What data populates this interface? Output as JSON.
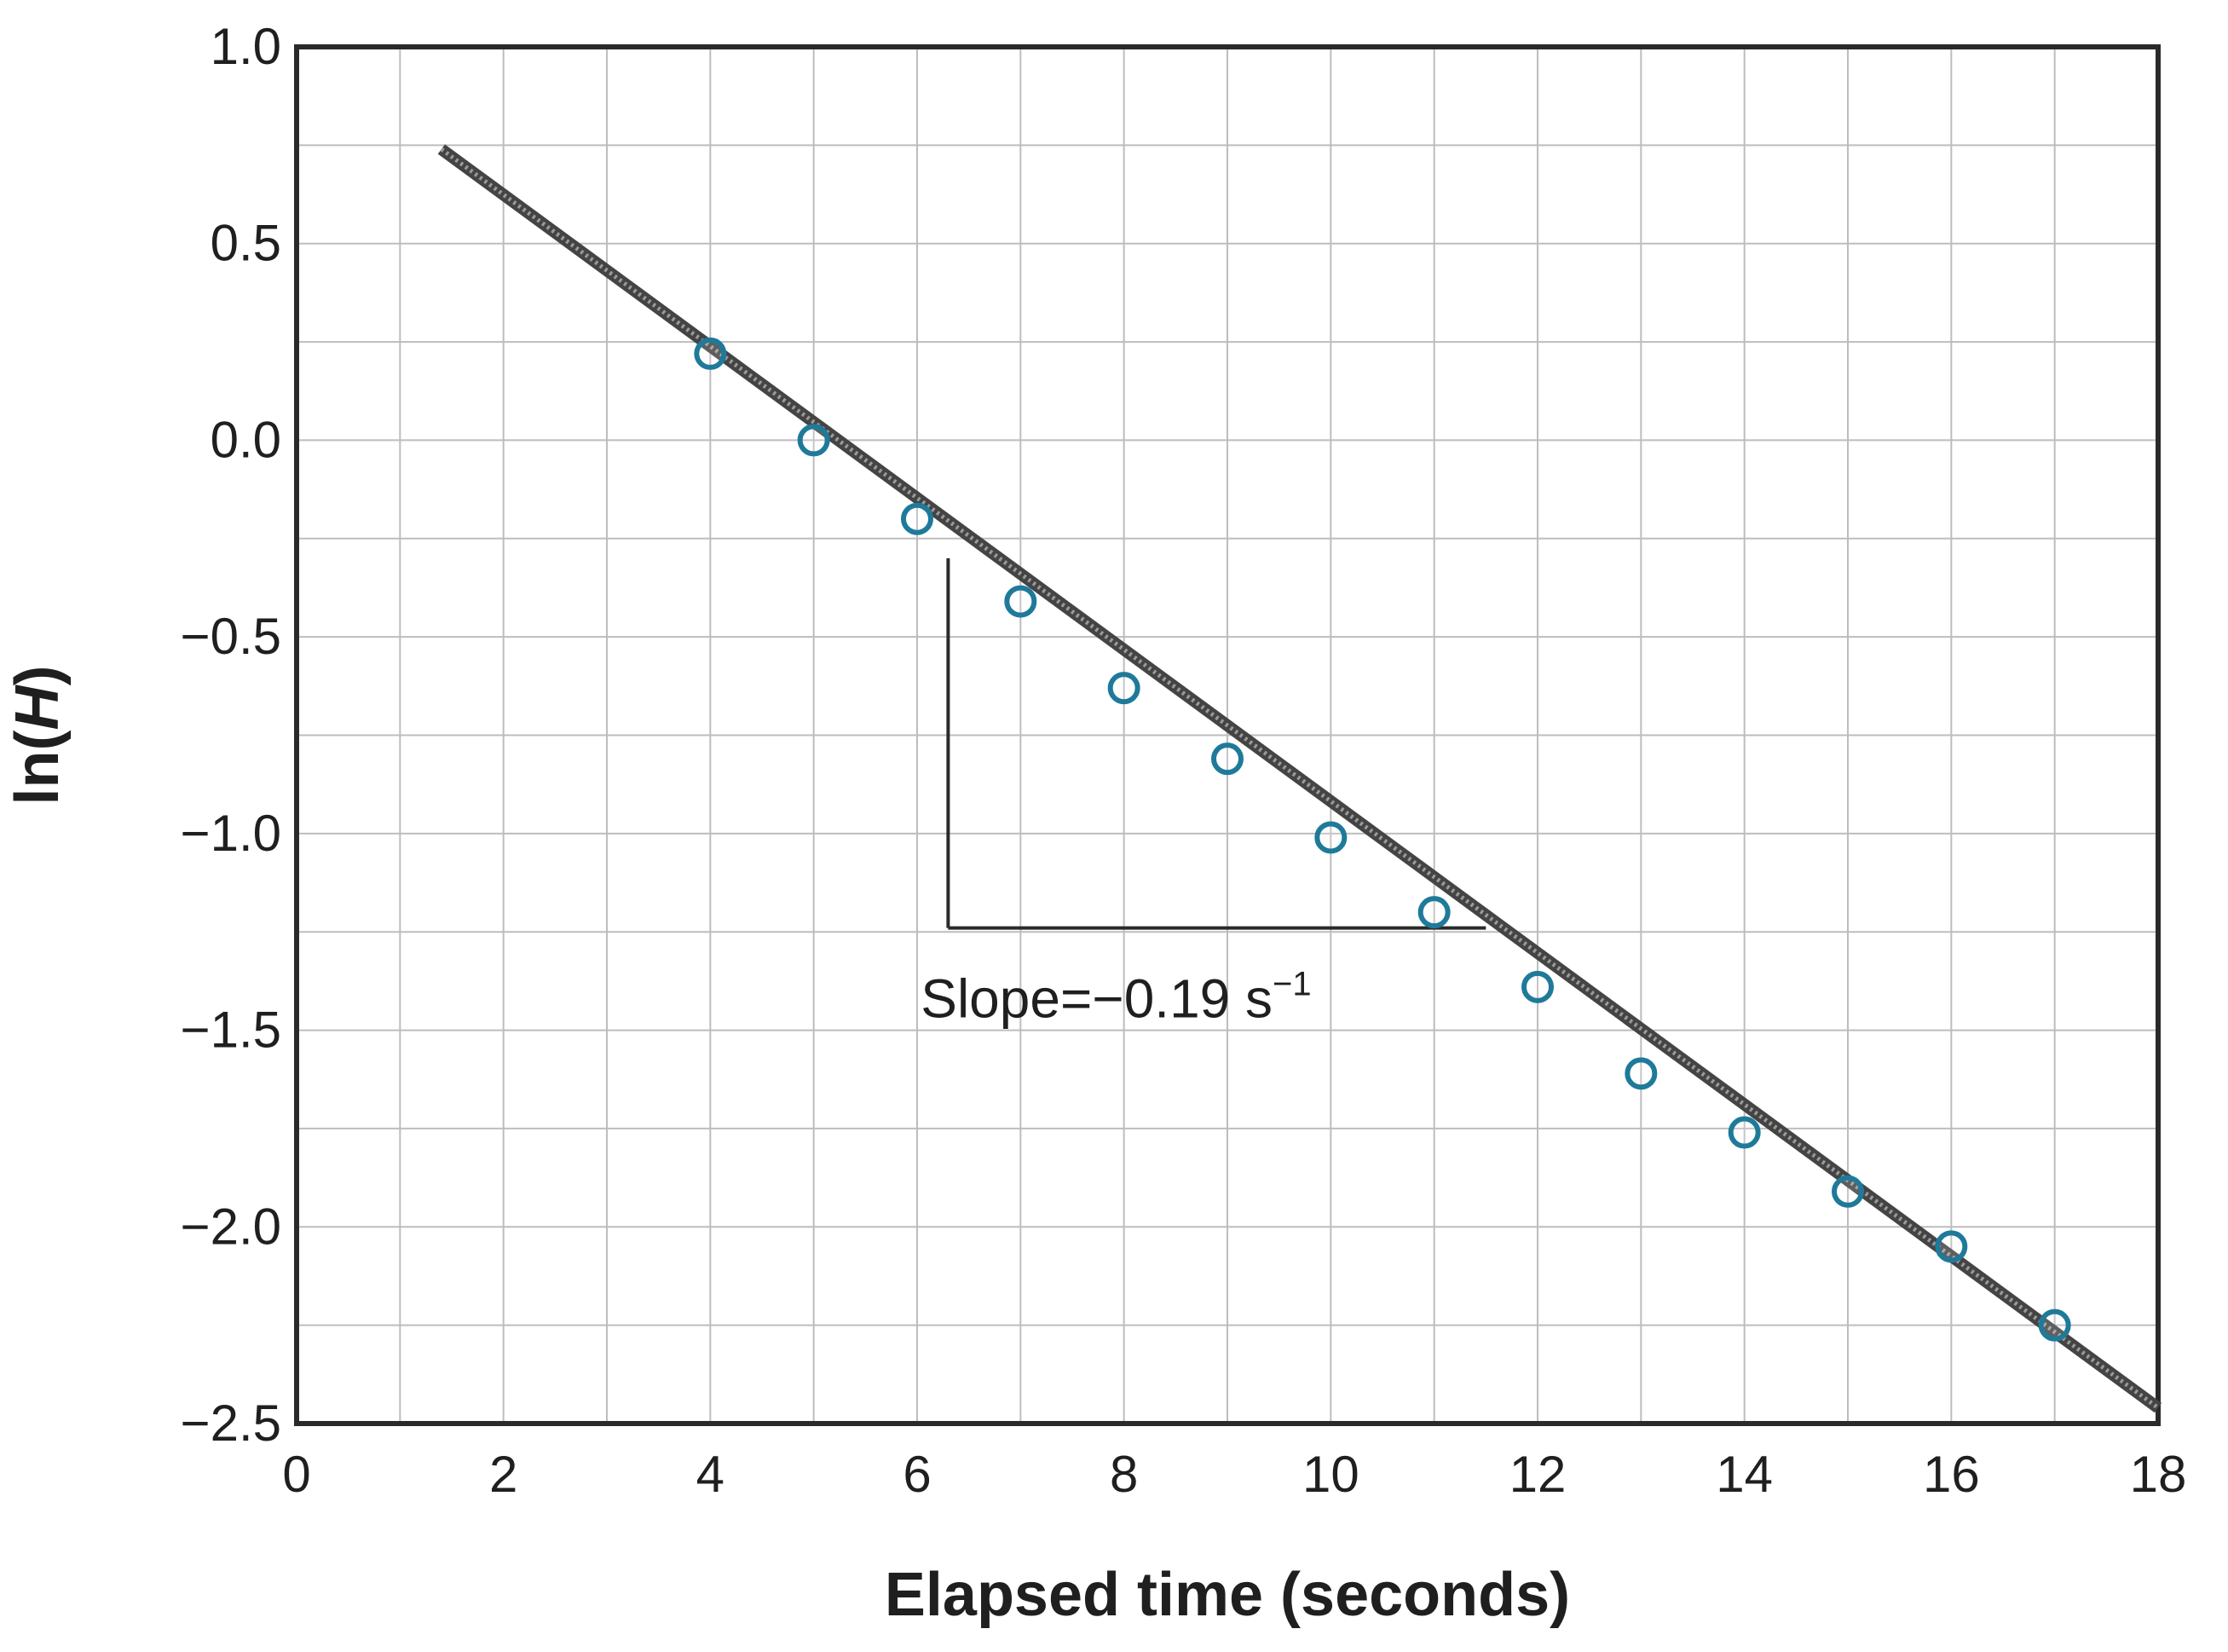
{
  "chart_data": {
    "type": "scatter",
    "title": "",
    "xlabel": "Elapsed time (seconds)",
    "ylabel_parts": {
      "prefix": "ln(",
      "var": "H",
      "suffix": ")"
    },
    "xlim": [
      0,
      18
    ],
    "ylim": [
      -2.5,
      1.0
    ],
    "x_ticks": [
      0,
      2,
      4,
      6,
      8,
      10,
      12,
      14,
      16,
      18
    ],
    "x_tick_labels": [
      "0",
      "2",
      "4",
      "6",
      "8",
      "10",
      "12",
      "14",
      "16",
      "18"
    ],
    "y_ticks": [
      1.0,
      0.5,
      0.0,
      -0.5,
      -1.0,
      -1.5,
      -2.0,
      -2.5
    ],
    "y_tick_labels": [
      "1.0",
      "0.5",
      "0.0",
      "−0.5",
      "−1.0",
      "−1.5",
      "−2.0",
      "−2.5"
    ],
    "grid": true,
    "series": [
      {
        "marker": "circle",
        "color": "#1f7a9a",
        "x": [
          4,
          5,
          6,
          7,
          8,
          9,
          10,
          11,
          12,
          13,
          14,
          15,
          16,
          17
        ],
        "y": [
          0.22,
          0.0,
          -0.2,
          -0.41,
          -0.63,
          -0.81,
          -1.01,
          -1.2,
          -1.39,
          -1.61,
          -1.76,
          -1.91,
          -2.05,
          -2.25
        ]
      }
    ],
    "fit_line": {
      "color": "#555555",
      "x": [
        1.4,
        18
      ],
      "y": [
        0.74,
        -2.46
      ]
    },
    "slope_triangle": {
      "x1": 6.3,
      "x2": 11.5,
      "y_bottom": -1.24,
      "y_top": -0.3
    },
    "annotation": {
      "prefix": "Slope",
      "middle": "=−0.19 s",
      "superscript": "−1",
      "x": 6.2,
      "y": -1.42
    }
  }
}
